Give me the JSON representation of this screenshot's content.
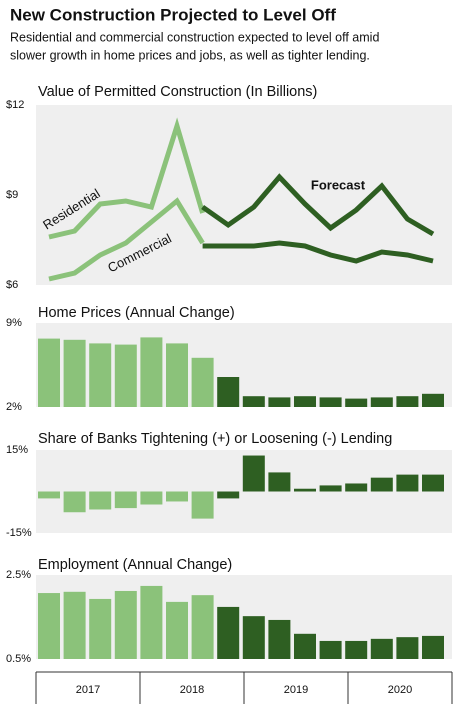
{
  "title": "New Construction Projected to Level Off",
  "subtitle": [
    "Residential and commercial construction expected to level off amid",
    "slower growth in home prices and jobs, as well as tighter lending."
  ],
  "years": [
    "2017",
    "2018",
    "2019",
    "2020"
  ],
  "chart_data": [
    {
      "type": "line",
      "title": "Value of Permitted Construction (In Billions)",
      "ylim": [
        6,
        12
      ],
      "yticks": [
        {
          "value": 12,
          "label": "$12"
        },
        {
          "value": 9,
          "label": "$9"
        },
        {
          "value": 6,
          "label": "$6"
        }
      ],
      "annotation": "Forecast",
      "series": [
        {
          "name": "Residential",
          "color": "#8bc27a",
          "values": [
            7.6,
            7.8,
            8.7,
            8.8,
            8.6,
            11.3,
            8.4,
            null,
            null,
            null,
            null,
            null,
            null,
            null,
            null,
            null
          ]
        },
        {
          "name": "Commercial",
          "color": "#8bc27a",
          "values": [
            6.2,
            6.4,
            7.0,
            7.4,
            8.1,
            8.8,
            7.4,
            null,
            null,
            null,
            null,
            null,
            null,
            null,
            null,
            null
          ]
        },
        {
          "color": "#2e5f22",
          "values": [
            null,
            null,
            null,
            null,
            null,
            null,
            8.6,
            8.0,
            8.6,
            9.6,
            8.7,
            7.9,
            8.5,
            9.3,
            8.2,
            7.7
          ]
        },
        {
          "color": "#2e5f22",
          "values": [
            null,
            null,
            null,
            null,
            null,
            null,
            7.3,
            7.3,
            7.3,
            7.4,
            7.3,
            7.0,
            6.8,
            7.1,
            7.0,
            6.8
          ]
        }
      ]
    },
    {
      "type": "bar",
      "title": "Home Prices (Annual Change)",
      "ylim": [
        2,
        9
      ],
      "yticks": [
        {
          "value": 9,
          "label": "9%"
        },
        {
          "value": 2,
          "label": "2%"
        }
      ],
      "series": [
        {
          "color": "#8bc27a",
          "values": [
            7.7,
            7.6,
            7.3,
            7.2,
            7.8,
            7.3,
            6.1,
            null,
            null,
            null,
            null,
            null,
            null,
            null,
            null,
            null
          ]
        },
        {
          "color": "#2e5f22",
          "values": [
            null,
            null,
            null,
            null,
            null,
            null,
            null,
            4.5,
            2.9,
            2.8,
            2.9,
            2.8,
            2.7,
            2.8,
            2.9,
            3.1
          ]
        }
      ]
    },
    {
      "type": "bar",
      "title": "Share of Banks Tightening  (+) or Loosening (-) Lending",
      "ylim": [
        -15,
        15
      ],
      "yticks": [
        {
          "value": 15,
          "label": "15%"
        },
        {
          "value": -15,
          "label": "-15%"
        }
      ],
      "series": [
        {
          "color": "#8bc27a",
          "values": [
            -2.5,
            -7.5,
            -6.5,
            -6,
            -4.7,
            -3.6,
            -9.8,
            null,
            null,
            null,
            null,
            null,
            null,
            null,
            null,
            null
          ]
        },
        {
          "color": "#2e5f22",
          "values": [
            null,
            null,
            null,
            null,
            null,
            null,
            null,
            -2.5,
            13,
            6.9,
            1,
            2.2,
            2.9,
            5,
            6.1,
            6.1
          ]
        }
      ]
    },
    {
      "type": "bar",
      "title": "Employment (Annual Change)",
      "ylim": [
        0.5,
        2.5
      ],
      "yticks": [
        {
          "value": 2.5,
          "label": "2.5%"
        },
        {
          "value": 0.5,
          "label": "0.5%"
        }
      ],
      "series": [
        {
          "color": "#8bc27a",
          "values": [
            2.07,
            2.1,
            1.93,
            2.12,
            2.24,
            1.86,
            2.02,
            null,
            null,
            null,
            null,
            null,
            null,
            null,
            null,
            null
          ]
        },
        {
          "color": "#2e5f22",
          "values": [
            null,
            null,
            null,
            null,
            null,
            null,
            null,
            1.74,
            1.52,
            1.43,
            1.1,
            0.93,
            0.93,
            0.98,
            1.02,
            1.05
          ]
        }
      ]
    }
  ]
}
